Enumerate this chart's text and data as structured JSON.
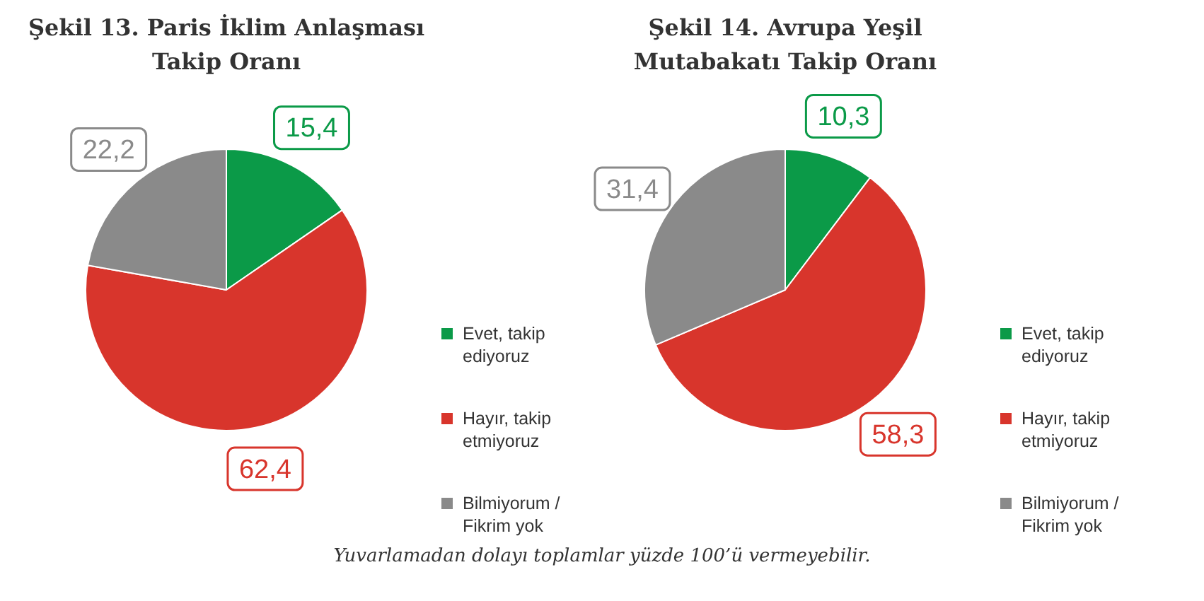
{
  "chart_data": [
    {
      "type": "pie",
      "title": "Şekil 13. Paris İklim Anlaşması Takip Oranı",
      "categories": [
        "Evet, takip ediyoruz",
        "Hayır, takip etmiyoruz",
        "Bilmiyorum / Fikrim yok"
      ],
      "values": [
        15.4,
        62.4,
        22.2
      ],
      "value_labels": [
        "15,4",
        "62,4",
        "22,2"
      ],
      "colors": [
        "#0b9a48",
        "#d8352c",
        "#8a8a8a"
      ],
      "legend": "right",
      "annotations": [
        "Yuvarlamadan dolayı toplamlar yüzde 100’ü vermeyebilir."
      ]
    },
    {
      "type": "pie",
      "title": "Şekil 14. Avrupa Yeşil Mutabakatı Takip Oranı",
      "categories": [
        "Evet, takip ediyoruz",
        "Hayır, takip etmiyoruz",
        "Bilmiyorum / Fikrim yok"
      ],
      "values": [
        10.3,
        58.3,
        31.4
      ],
      "value_labels": [
        "10,3",
        "58,3",
        "31,4"
      ],
      "colors": [
        "#0b9a48",
        "#d8352c",
        "#8a8a8a"
      ],
      "legend": "right"
    }
  ]
}
